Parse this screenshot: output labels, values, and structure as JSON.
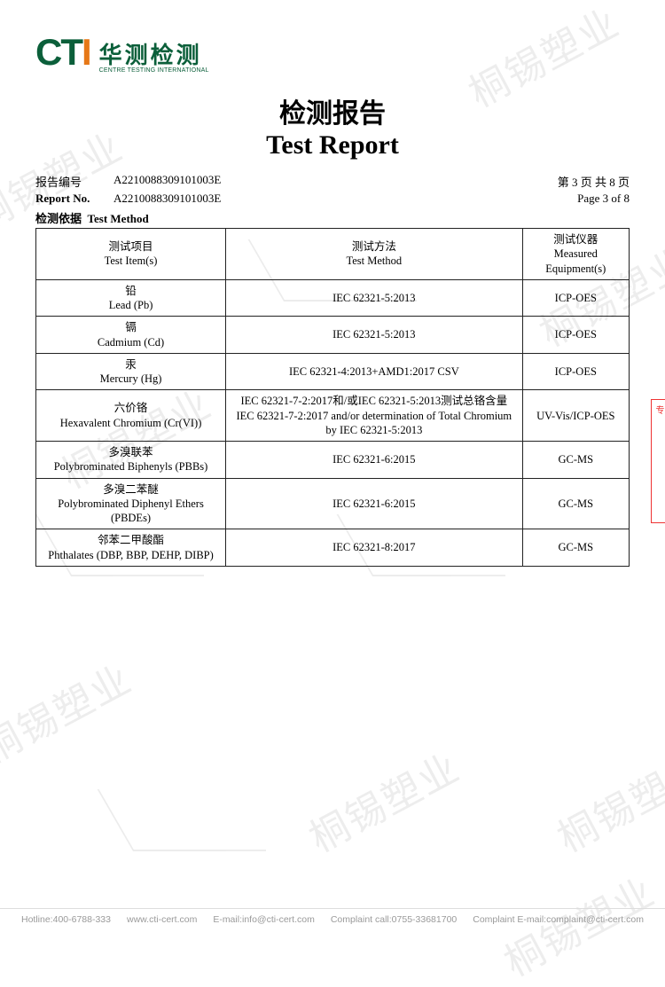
{
  "watermark_text": "桐锡塑业",
  "watermark_color": "rgba(0,0,0,0.07)",
  "logo": {
    "abbr_prefix": "CT",
    "abbr_suffix": "I",
    "cn": "华测检测",
    "en": "CENTRE TESTING INTERNATIONAL",
    "green": "#0b5f3a",
    "orange": "#e67817"
  },
  "title": {
    "cn": "检测报告",
    "en": "Test Report"
  },
  "report_no": {
    "label_cn": "报告编号",
    "label_en": "Report No.",
    "value": "A2210088309101003E"
  },
  "page_info": {
    "cn": "第 3 页  共 8 页",
    "en": "Page 3 of 8"
  },
  "section": {
    "cn": "检测依据",
    "en": "Test Method"
  },
  "table": {
    "headers": {
      "item": {
        "cn": "测试项目",
        "en": "Test Item(s)"
      },
      "method": {
        "cn": "测试方法",
        "en": "Test Method"
      },
      "equip": {
        "cn": "测试仪器",
        "en": "Measured Equipment(s)"
      }
    },
    "rows": [
      {
        "item_cn": "铅",
        "item_en": "Lead (Pb)",
        "method": "IEC 62321-5:2013",
        "equip": "ICP-OES"
      },
      {
        "item_cn": "镉",
        "item_en": "Cadmium (Cd)",
        "method": "IEC 62321-5:2013",
        "equip": "ICP-OES"
      },
      {
        "item_cn": "汞",
        "item_en": "Mercury (Hg)",
        "method": "IEC 62321-4:2013+AMD1:2017 CSV",
        "equip": "ICP-OES"
      },
      {
        "item_cn": "六价铬",
        "item_en": "Hexavalent Chromium (Cr(VI))",
        "method": "IEC 62321-7-2:2017和/或IEC 62321-5:2013测试总铬含量\nIEC 62321-7-2:2017 and/or determination of Total Chromium by IEC 62321-5:2013",
        "equip": "UV-Vis/ICP-OES"
      },
      {
        "item_cn": "多溴联苯",
        "item_en": "Polybrominated Biphenyls (PBBs)",
        "method": "IEC 62321-6:2015",
        "equip": "GC-MS"
      },
      {
        "item_cn": "多溴二苯醚",
        "item_en": "Polybrominated Diphenyl Ethers (PBDEs)",
        "method": "IEC 62321-6:2015",
        "equip": "GC-MS"
      },
      {
        "item_cn": "邻苯二甲酸酯",
        "item_en": "Phthalates (DBP, BBP, DEHP, DIBP)",
        "method": "IEC 62321-8:2017",
        "equip": "GC-MS"
      }
    ]
  },
  "footer": {
    "hotline": "Hotline:400-6788-333",
    "web": "www.cti-cert.com",
    "email": "E-mail:info@cti-cert.com",
    "complaint_call": "Complaint call:0755-33681700",
    "complaint_email": "Complaint E-mail:complaint@cti-cert.com"
  },
  "side_stamp": "专"
}
